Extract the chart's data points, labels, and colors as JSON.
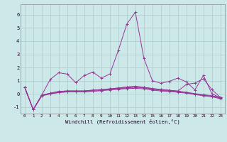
{
  "title": "",
  "xlabel": "Windchill (Refroidissement éolien,°C)",
  "ylabel": "",
  "background_color": "#cce8e8",
  "grid_color": "#aacccc",
  "line_color": "#993399",
  "x": [
    0,
    1,
    2,
    3,
    4,
    5,
    6,
    7,
    8,
    9,
    10,
    11,
    12,
    13,
    14,
    15,
    16,
    17,
    18,
    19,
    20,
    21,
    22,
    23
  ],
  "lines": [
    [
      0.5,
      -1.2,
      -0.1,
      1.1,
      1.6,
      1.5,
      0.85,
      1.4,
      1.65,
      1.2,
      1.5,
      3.3,
      5.3,
      6.2,
      2.7,
      1.0,
      0.8,
      0.95,
      1.2,
      0.9,
      0.3,
      1.4,
      0.0,
      -0.3
    ],
    [
      0.5,
      -1.2,
      -0.15,
      0.0,
      0.1,
      0.15,
      0.15,
      0.15,
      0.2,
      0.25,
      0.3,
      0.35,
      0.4,
      0.42,
      0.38,
      0.28,
      0.22,
      0.18,
      0.12,
      0.05,
      -0.05,
      -0.15,
      -0.22,
      -0.38
    ],
    [
      0.5,
      -1.2,
      -0.15,
      0.0,
      0.1,
      0.15,
      0.15,
      0.15,
      0.2,
      0.25,
      0.32,
      0.38,
      0.45,
      0.5,
      0.45,
      0.35,
      0.28,
      0.22,
      0.16,
      0.08,
      -0.02,
      -0.1,
      -0.18,
      -0.32
    ],
    [
      0.5,
      -1.2,
      -0.12,
      0.05,
      0.18,
      0.22,
      0.22,
      0.22,
      0.28,
      0.32,
      0.38,
      0.44,
      0.52,
      0.56,
      0.5,
      0.4,
      0.33,
      0.27,
      0.21,
      0.12,
      0.02,
      -0.07,
      -0.14,
      -0.28
    ],
    [
      0.5,
      -1.2,
      -0.1,
      0.05,
      0.18,
      0.22,
      0.22,
      0.22,
      0.28,
      0.32,
      0.38,
      0.44,
      0.52,
      0.56,
      0.5,
      0.4,
      0.33,
      0.27,
      0.21,
      0.72,
      0.82,
      1.15,
      0.32,
      -0.28
    ]
  ],
  "ylim": [
    -1.5,
    6.8
  ],
  "yticks": [
    -1,
    0,
    1,
    2,
    3,
    4,
    5,
    6
  ],
  "xlim": [
    -0.5,
    23.5
  ],
  "xticks": [
    0,
    1,
    2,
    3,
    4,
    5,
    6,
    7,
    8,
    9,
    10,
    11,
    12,
    13,
    14,
    15,
    16,
    17,
    18,
    19,
    20,
    21,
    22,
    23
  ]
}
